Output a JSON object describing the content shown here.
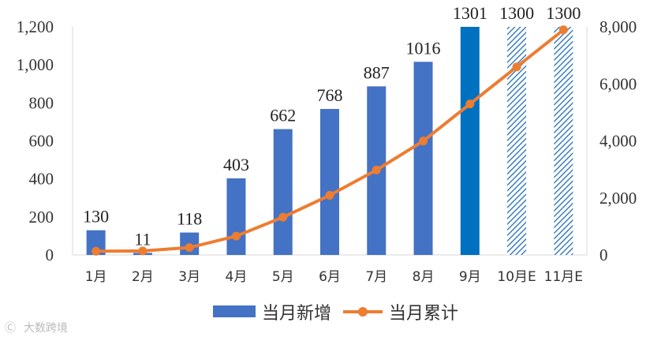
{
  "chart_data": {
    "type": "bar",
    "categories": [
      "1月",
      "2月",
      "3月",
      "4月",
      "5月",
      "6月",
      "7月",
      "8月",
      "9月",
      "10月E",
      "11月E"
    ],
    "series": [
      {
        "name": "当月新增",
        "type": "bar",
        "axis": "left",
        "values": [
          130,
          11,
          118,
          403,
          662,
          768,
          887,
          1016,
          1301,
          1300,
          1300
        ],
        "data_labels": [
          "130",
          "11",
          "118",
          "403",
          "662",
          "768",
          "887",
          "1016",
          "1301",
          "1300",
          "1300"
        ],
        "color": "#4472C4",
        "highlight_color": "#0070C0",
        "estimate_style": "hatched"
      },
      {
        "name": "当月累计",
        "type": "line",
        "axis": "right",
        "values": [
          130,
          141,
          259,
          662,
          1324,
          2092,
          2979,
          3995,
          5296,
          6596,
          7896
        ],
        "color": "#ED7D31"
      }
    ],
    "y_left": {
      "ylim": [
        0,
        1200
      ],
      "ticks": [
        "0",
        "200",
        "400",
        "600",
        "800",
        "1,000",
        "1,200"
      ]
    },
    "y_right": {
      "ylim": [
        0,
        8000
      ],
      "ticks": [
        "0",
        "2,000",
        "4,000",
        "6,000",
        "8,000"
      ]
    },
    "grid": false,
    "legend_position": "bottom"
  },
  "watermark": {
    "text": "大数跨境"
  }
}
